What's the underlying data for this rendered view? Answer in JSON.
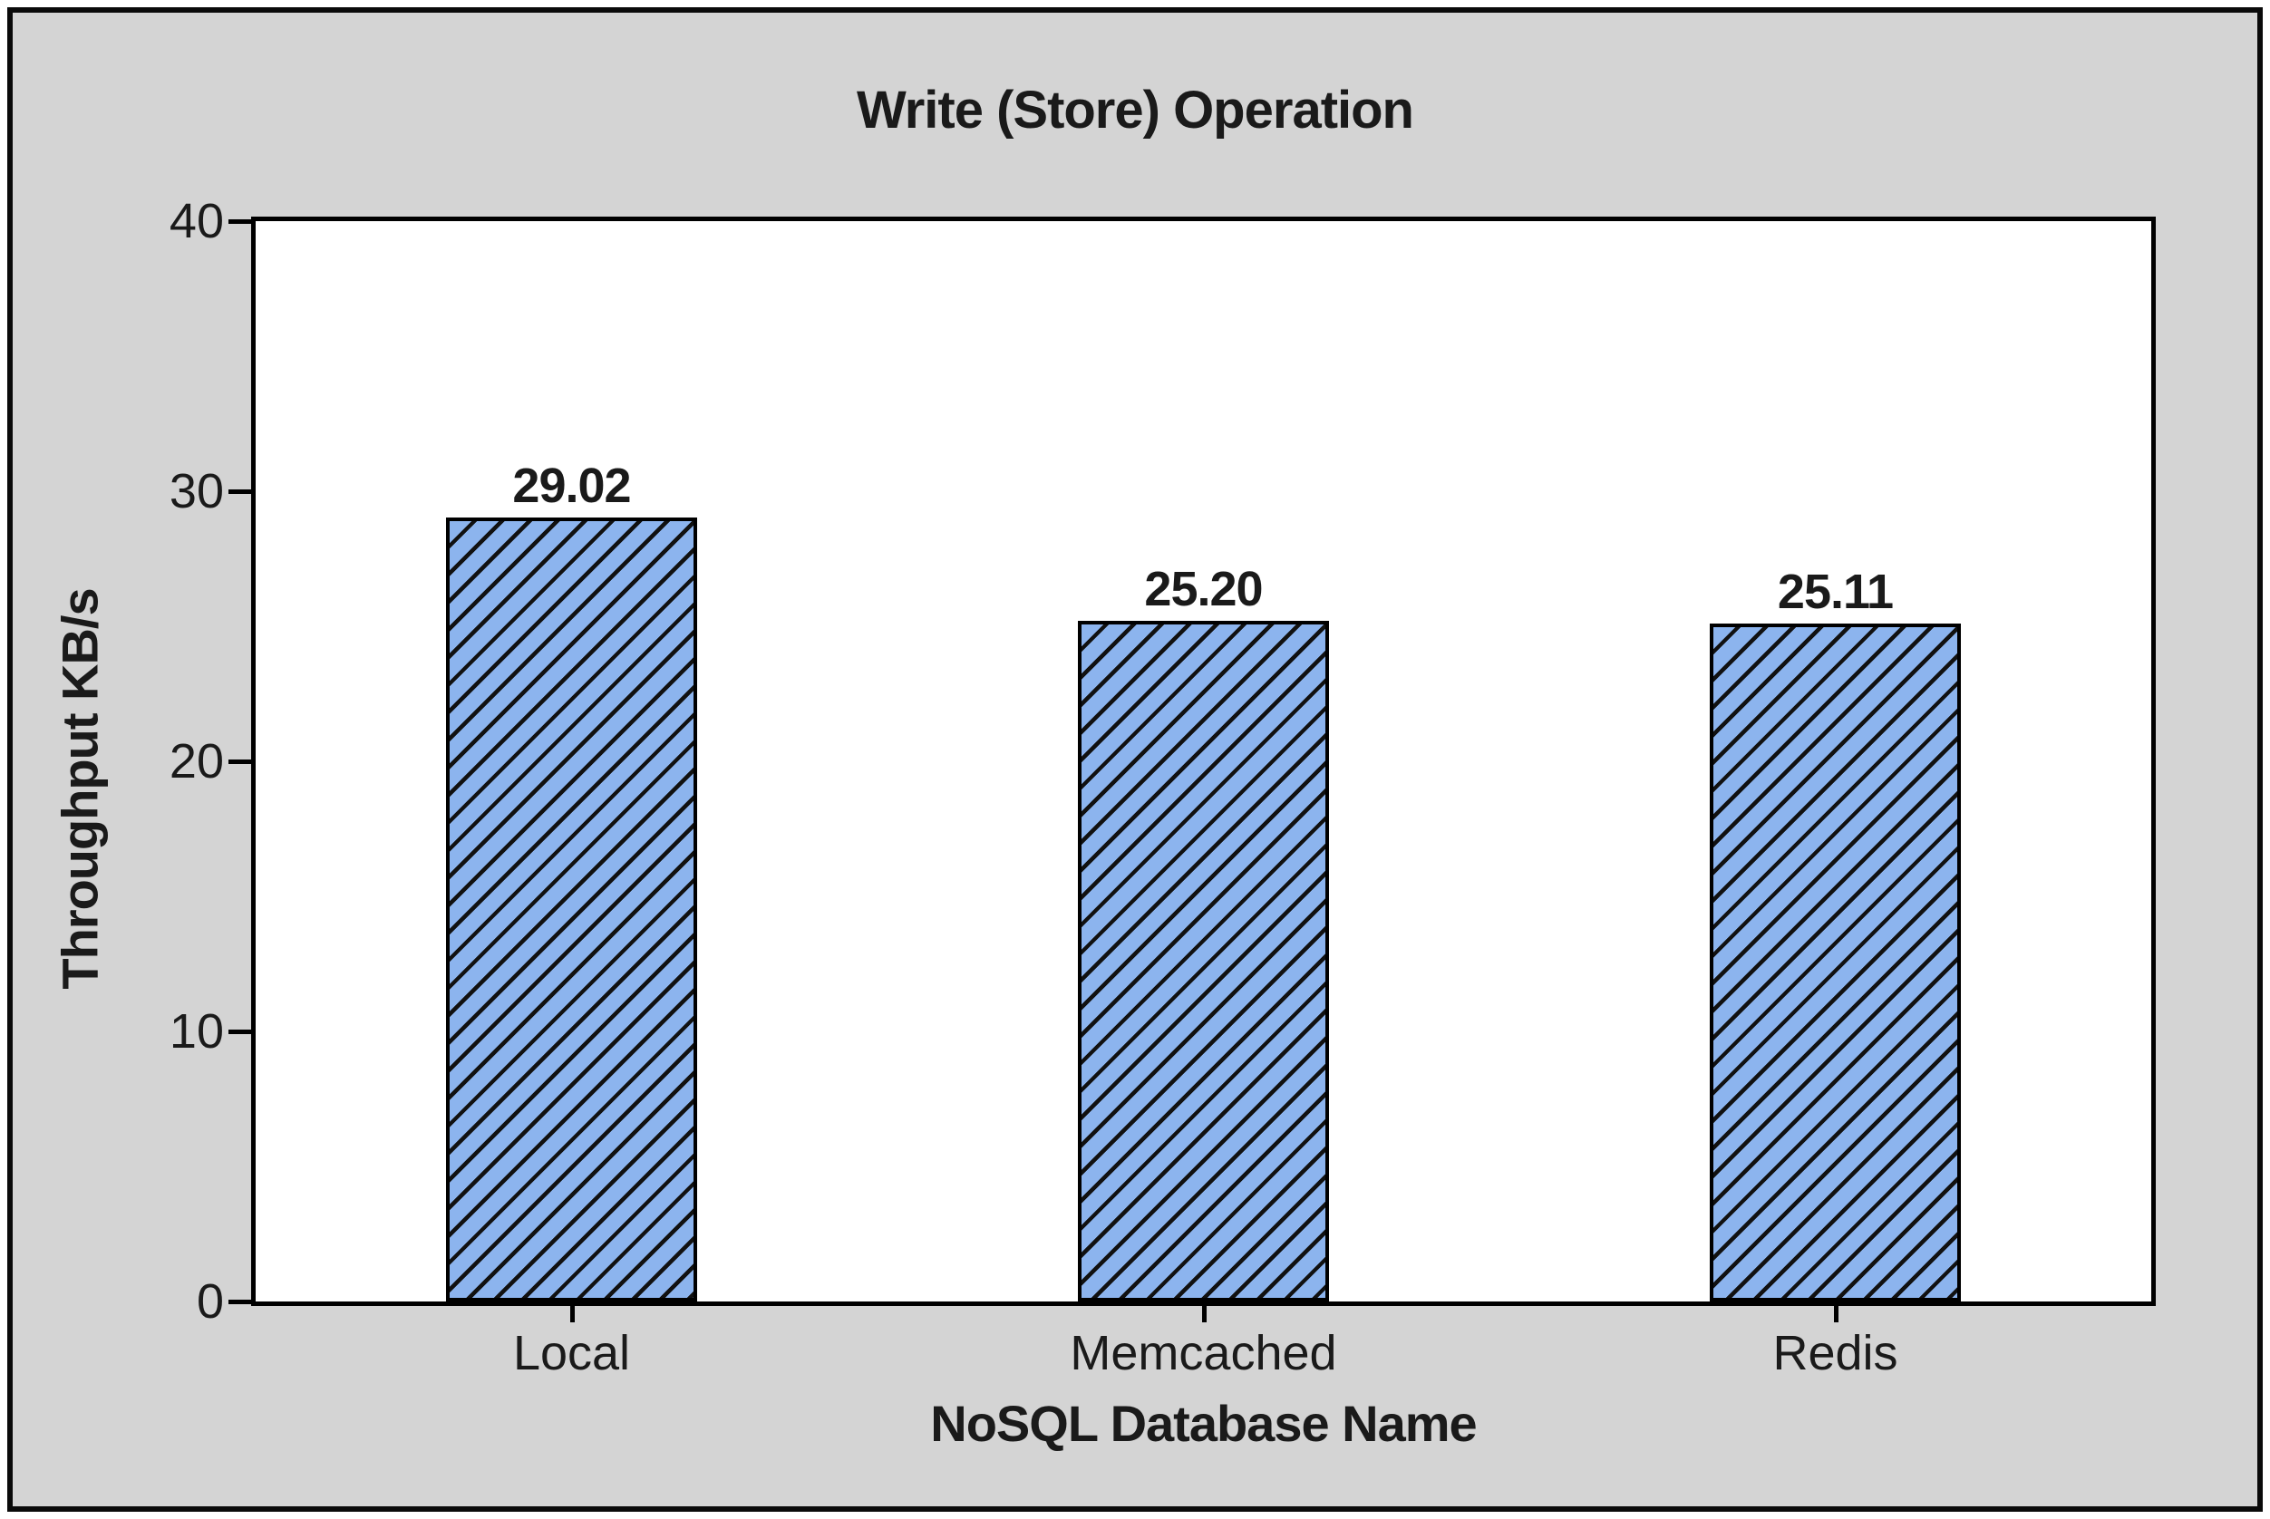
{
  "chart_data": {
    "type": "bar",
    "title": "Write (Store) Operation",
    "xlabel": "NoSQL Database Name",
    "ylabel": "Throughput KB/s",
    "categories": [
      "Local",
      "Memcached",
      "Redis"
    ],
    "values": [
      29.02,
      25.2,
      25.11
    ],
    "value_labels": [
      "29.02",
      "25.20",
      "25.11"
    ],
    "ylim": [
      0,
      40
    ],
    "yticks": [
      0,
      10,
      20,
      30,
      40
    ],
    "grid": false,
    "legend": null,
    "hatch": "forward-diagonal",
    "colors": {
      "bar_fill": "#8cb4ee",
      "hatch_line": "#111111",
      "chart_background": "#d4d4d4",
      "plot_background": "#ffffff",
      "text": "#1a1a1a"
    }
  }
}
